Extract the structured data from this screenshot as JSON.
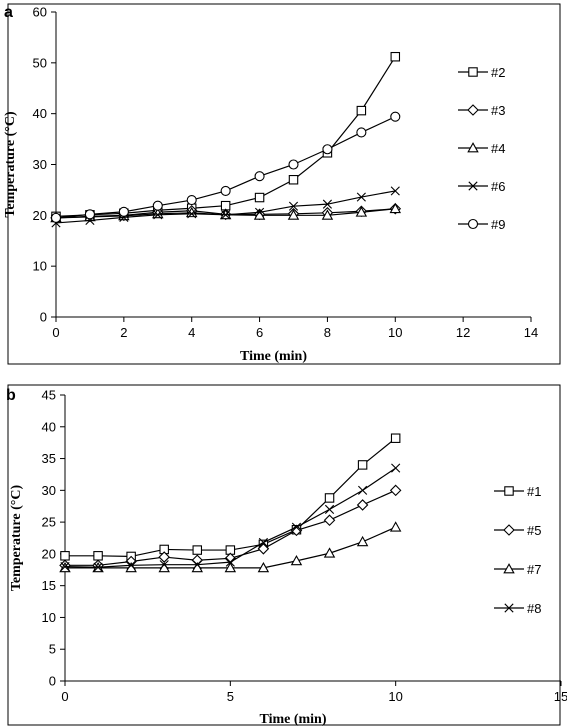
{
  "chart_data": [
    {
      "panel": "a",
      "type": "line",
      "xlabel": "Time (min)",
      "ylabel": "Temperature (°C)",
      "xlim": [
        0,
        14
      ],
      "ylim": [
        0,
        60
      ],
      "xticks": [
        0,
        2,
        4,
        6,
        8,
        10,
        12,
        14
      ],
      "yticks": [
        0,
        10,
        20,
        30,
        40,
        50,
        60
      ],
      "grid": false,
      "legend_position": "right",
      "x": [
        0,
        1,
        2,
        3,
        4,
        5,
        6,
        7,
        8,
        9,
        10
      ],
      "series": [
        {
          "name": "#2",
          "marker": "square",
          "values": [
            19.8,
            20.1,
            20.4,
            21.0,
            21.4,
            21.9,
            23.5,
            27.0,
            32.3,
            40.6,
            51.2
          ]
        },
        {
          "name": "#3",
          "marker": "diamond",
          "values": [
            19.5,
            19.8,
            20.0,
            20.6,
            20.9,
            20.2,
            20.2,
            20.3,
            20.5,
            20.8,
            21.3
          ]
        },
        {
          "name": "#4",
          "marker": "triangle",
          "values": [
            19.5,
            19.7,
            19.9,
            20.3,
            20.5,
            20.1,
            20.0,
            20.0,
            20.0,
            20.6,
            21.3
          ]
        },
        {
          "name": "#6",
          "marker": "x",
          "values": [
            18.5,
            19.0,
            19.6,
            20.1,
            20.3,
            20.1,
            20.6,
            21.8,
            22.2,
            23.6,
            24.8
          ]
        },
        {
          "name": "#9",
          "marker": "circle",
          "values": [
            19.5,
            20.2,
            20.7,
            21.9,
            23.0,
            24.8,
            27.7,
            30.0,
            33.0,
            36.3,
            39.4
          ]
        }
      ]
    },
    {
      "panel": "b",
      "type": "line",
      "xlabel": "Time (min)",
      "ylabel": "Temperature (°C)",
      "xlim": [
        0,
        15
      ],
      "ylim": [
        0,
        45
      ],
      "xticks": [
        0,
        5,
        10,
        15
      ],
      "yticks": [
        0,
        5,
        10,
        15,
        20,
        25,
        30,
        35,
        40,
        45
      ],
      "grid": false,
      "legend_position": "right",
      "x": [
        0,
        1,
        2,
        3,
        4,
        5,
        6,
        7,
        8,
        9,
        10
      ],
      "series": [
        {
          "name": "#1",
          "marker": "square",
          "values": [
            19.7,
            19.7,
            19.6,
            20.7,
            20.6,
            20.6,
            21.5,
            23.8,
            28.8,
            34.0,
            38.2
          ]
        },
        {
          "name": "#5",
          "marker": "diamond",
          "values": [
            18.2,
            18.2,
            18.8,
            19.5,
            19.0,
            19.3,
            20.8,
            23.7,
            25.3,
            27.7,
            30.0
          ]
        },
        {
          "name": "#7",
          "marker": "triangle",
          "values": [
            17.8,
            17.8,
            17.8,
            17.8,
            17.8,
            17.8,
            17.8,
            18.9,
            20.1,
            21.9,
            24.2
          ]
        },
        {
          "name": "#8",
          "marker": "x",
          "values": [
            18.0,
            17.9,
            18.2,
            18.3,
            18.3,
            18.7,
            21.8,
            24.2,
            27.0,
            30.0,
            33.5
          ]
        }
      ]
    }
  ]
}
